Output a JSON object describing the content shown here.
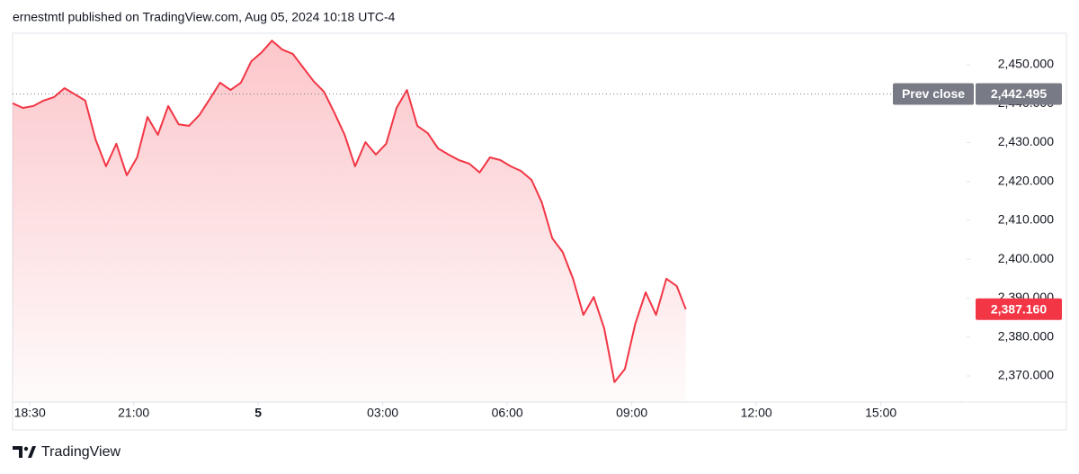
{
  "chart_data": {
    "type": "area",
    "subtitle": "ernestmtl published on TradingView.com, Aug 05, 2024 10:18 UTC-4",
    "brand": "TradingView",
    "x": [
      "18:05",
      "18:20",
      "18:35",
      "18:50",
      "19:05",
      "19:20",
      "19:35",
      "19:50",
      "20:05",
      "20:20",
      "20:35",
      "20:50",
      "21:05",
      "21:20",
      "21:35",
      "21:50",
      "22:05",
      "22:20",
      "22:35",
      "22:50",
      "23:05",
      "23:20",
      "23:35",
      "23:50",
      "00:05",
      "00:20",
      "00:35",
      "00:50",
      "01:05",
      "01:20",
      "01:35",
      "01:50",
      "02:05",
      "02:20",
      "02:35",
      "02:50",
      "03:05",
      "03:20",
      "03:35",
      "03:50",
      "04:05",
      "04:20",
      "04:35",
      "04:50",
      "05:05",
      "05:20",
      "05:35",
      "05:50",
      "06:05",
      "06:20",
      "06:35",
      "06:50",
      "07:05",
      "07:20",
      "07:35",
      "07:50",
      "08:05",
      "08:20",
      "08:35",
      "08:50",
      "09:05",
      "09:20",
      "09:35",
      "09:50",
      "10:05",
      "10:18"
    ],
    "series": [
      {
        "color": "#f23645",
        "values": [
          2440.1,
          2438.9,
          2439.4,
          2440.8,
          2441.7,
          2444.0,
          2442.4,
          2440.8,
          2430.8,
          2423.9,
          2429.7,
          2421.6,
          2426.2,
          2436.6,
          2432.0,
          2439.4,
          2434.7,
          2434.3,
          2437.1,
          2441.2,
          2445.4,
          2443.5,
          2445.4,
          2450.9,
          2453.2,
          2456.2,
          2453.9,
          2452.8,
          2449.3,
          2445.8,
          2443.1,
          2437.7,
          2432.0,
          2423.9,
          2430.1,
          2426.9,
          2429.7,
          2438.9,
          2443.5,
          2434.3,
          2432.4,
          2428.5,
          2426.9,
          2425.5,
          2424.6,
          2422.3,
          2426.2,
          2425.5,
          2423.9,
          2422.7,
          2420.4,
          2414.6,
          2405.4,
          2401.9,
          2395.0,
          2385.7,
          2390.3,
          2382.3,
          2368.4,
          2371.8,
          2383.4,
          2391.5,
          2385.7,
          2395.0,
          2393.1,
          2387.16
        ],
        "value_labels": [
          null,
          null,
          null,
          null,
          null,
          null,
          null,
          null,
          null,
          null,
          null,
          null,
          null,
          null,
          null,
          null,
          null,
          null,
          null,
          null,
          null,
          null,
          null,
          null,
          null,
          null,
          null,
          null,
          null,
          null,
          null,
          null,
          null,
          null,
          null,
          null,
          null,
          null,
          null,
          null,
          null,
          null,
          null,
          null,
          null,
          null,
          null,
          null,
          null,
          null,
          null,
          null,
          null,
          null,
          null,
          null,
          null,
          null,
          null,
          null,
          null,
          null,
          null,
          null,
          null,
          "2,387.160"
        ]
      }
    ],
    "prev_close": {
      "name": "Prev close",
      "value": 2442.495,
      "label": "2,442.495",
      "color": "#787b86"
    },
    "xlim": [
      "18:05",
      "17:00"
    ],
    "xticks": [
      "18:30",
      "21:00",
      {
        "value": "00:00",
        "label": "5"
      },
      "03:00",
      "06:00",
      "09:00",
      "12:00",
      "15:00"
    ],
    "ylim": [
      2363.3,
      2458.1
    ],
    "yticks": [
      {
        "value": 2370,
        "label": "2,370.000"
      },
      {
        "value": 2380,
        "label": "2,380.000"
      },
      {
        "value": 2390,
        "label": "2,390.000"
      },
      {
        "value": 2400,
        "label": "2,400.000"
      },
      {
        "value": 2410,
        "label": "2,410.000"
      },
      {
        "value": 2420,
        "label": "2,420.000"
      },
      {
        "value": 2430,
        "label": "2,430.000"
      },
      {
        "value": 2440,
        "label": "2,440.000"
      },
      {
        "value": 2450,
        "label": "2,450.000"
      }
    ],
    "grid": false
  }
}
